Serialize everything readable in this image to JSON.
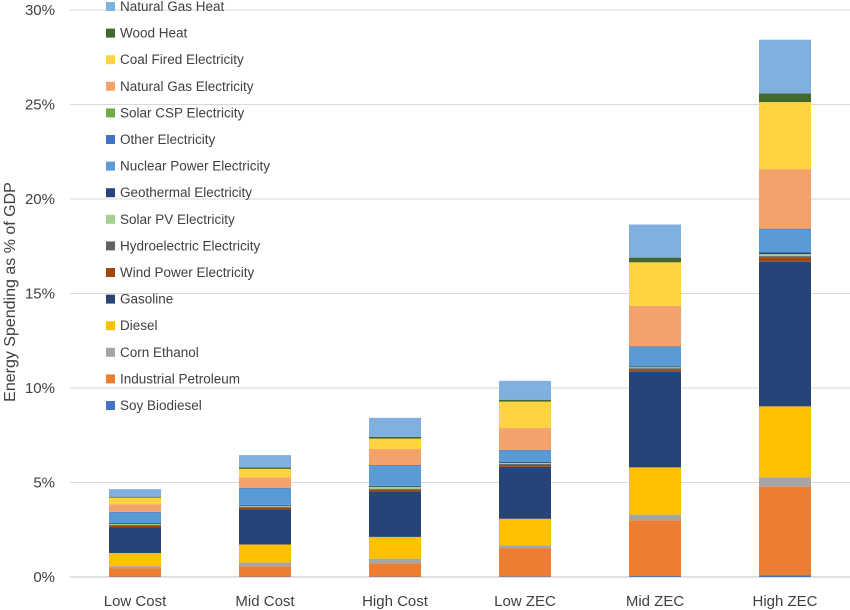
{
  "chart_data": {
    "type": "bar",
    "stacked": true,
    "ylabel": "Energy Spending as % of GDP",
    "ylim": [
      0,
      30
    ],
    "yticks": [
      "0%",
      "5%",
      "10%",
      "15%",
      "20%",
      "25%",
      "30%"
    ],
    "categories": [
      "Low Cost",
      "Mid Cost",
      "High Cost",
      "Low ZEC",
      "Mid ZEC",
      "High ZEC"
    ],
    "grid": true,
    "legend_position": "top-left",
    "series": [
      {
        "name": "Soy Biodiesel",
        "color": "#4472c4",
        "values": [
          0.02,
          0.02,
          0.02,
          0.03,
          0.05,
          0.08
        ]
      },
      {
        "name": "Industrial Petroleum",
        "color": "#ed7d31",
        "values": [
          0.45,
          0.55,
          0.7,
          1.5,
          2.95,
          4.7
        ]
      },
      {
        "name": "Corn Ethanol",
        "color": "#a5a5a5",
        "values": [
          0.1,
          0.2,
          0.25,
          0.15,
          0.3,
          0.5
        ]
      },
      {
        "name": "Diesel",
        "color": "#ffc000",
        "values": [
          0.7,
          0.95,
          1.15,
          1.4,
          2.5,
          3.75
        ]
      },
      {
        "name": "Gasoline",
        "color": "#264478",
        "values": [
          1.35,
          1.85,
          2.4,
          2.75,
          5.05,
          7.65
        ]
      },
      {
        "name": "Wind Power Electricity",
        "color": "#9e480e",
        "values": [
          0.08,
          0.1,
          0.1,
          0.1,
          0.15,
          0.2
        ]
      },
      {
        "name": "Hydroelectric Electricity",
        "color": "#636363",
        "values": [
          0.05,
          0.05,
          0.05,
          0.05,
          0.05,
          0.1
        ]
      },
      {
        "name": "Solar PV Electricity",
        "color": "#a9d18e",
        "values": [
          0.05,
          0.05,
          0.1,
          0.05,
          0.05,
          0.1
        ]
      },
      {
        "name": "Geothermal Electricity",
        "color": "#264478",
        "values": [
          0.05,
          0.05,
          0.05,
          0.05,
          0.05,
          0.1
        ]
      },
      {
        "name": "Nuclear Power Electricity",
        "color": "#5b9bd5",
        "values": [
          0.55,
          0.85,
          1.05,
          0.6,
          1.0,
          1.2
        ]
      },
      {
        "name": "Other Electricity",
        "color": "#4472c4",
        "values": [
          0.05,
          0.05,
          0.05,
          0.05,
          0.05,
          0.05
        ]
      },
      {
        "name": "Solar CSP Electricity",
        "color": "#70ad47",
        "values": [
          0.0,
          0.0,
          0.0,
          0.0,
          0.0,
          0.0
        ]
      },
      {
        "name": "Natural Gas Electricity",
        "color": "#f4a26b",
        "values": [
          0.4,
          0.55,
          0.85,
          1.15,
          2.15,
          3.15
        ]
      },
      {
        "name": "Coal Fired Electricity",
        "color": "#ffd23f",
        "values": [
          0.35,
          0.45,
          0.55,
          1.4,
          2.3,
          3.55
        ]
      },
      {
        "name": "Wood Heat",
        "color": "#43682b",
        "values": [
          0.05,
          0.08,
          0.1,
          0.1,
          0.25,
          0.45
        ]
      },
      {
        "name": "Natural Gas Heat",
        "color": "#7fb0e0",
        "values": [
          0.4,
          0.65,
          1.0,
          1.0,
          1.75,
          2.85
        ]
      }
    ]
  }
}
